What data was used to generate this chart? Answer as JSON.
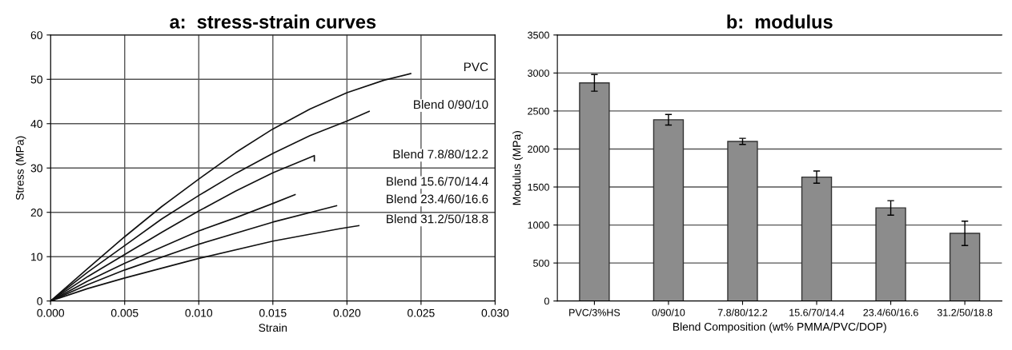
{
  "chart_data": [
    {
      "type": "line",
      "title": "a:  stress-strain curves",
      "xlabel": "Strain",
      "ylabel": "Stress (MPa)",
      "xlim": [
        0,
        0.03
      ],
      "ylim": [
        0,
        60
      ],
      "xticks": [
        {
          "value": 0,
          "label": "0.000"
        },
        {
          "value": 0.005,
          "label": "0.005"
        },
        {
          "value": 0.01,
          "label": "0.010"
        },
        {
          "value": 0.015,
          "label": "0.015"
        },
        {
          "value": 0.02,
          "label": "0.020"
        },
        {
          "value": 0.025,
          "label": "0.025"
        },
        {
          "value": 0.03,
          "label": "0.030"
        }
      ],
      "yticks": [
        0,
        10,
        20,
        30,
        40,
        50,
        60
      ],
      "grid": true,
      "legend": false,
      "marker": "none",
      "line_style": "solid",
      "series": [
        {
          "name": "PVC",
          "color": "#111111",
          "x": [
            0,
            0.0025,
            0.005,
            0.0075,
            0.01,
            0.0125,
            0.015,
            0.0175,
            0.02,
            0.0225,
            0.0243
          ],
          "values": [
            0,
            7.3,
            14.5,
            21.3,
            27.5,
            33.5,
            38.8,
            43.3,
            47,
            49.8,
            51.3
          ]
        },
        {
          "name": "Blend 0/90/10",
          "color": "#111111",
          "x": [
            0,
            0.0025,
            0.005,
            0.0075,
            0.01,
            0.0125,
            0.015,
            0.0175,
            0.02,
            0.0215
          ],
          "values": [
            0,
            6.5,
            12.5,
            18.5,
            23.8,
            28.8,
            33.3,
            37.3,
            40.6,
            42.8
          ]
        },
        {
          "name": "Blend 7.8/80/12.2",
          "color": "#111111",
          "x": [
            0,
            0.0025,
            0.005,
            0.0075,
            0.01,
            0.0125,
            0.015,
            0.0178,
            0.0178
          ],
          "values": [
            0,
            5.5,
            10.5,
            15.5,
            20.3,
            24.8,
            28.9,
            32.8,
            31.6
          ]
        },
        {
          "name": "Blend 15.6/70/14.4",
          "color": "#111111",
          "x": [
            0,
            0.0025,
            0.005,
            0.01,
            0.0125,
            0.015,
            0.0165
          ],
          "values": [
            0,
            4.5,
            8.5,
            15.8,
            18.8,
            22,
            24
          ]
        },
        {
          "name": "Blend 23.4/60/16.6",
          "color": "#111111",
          "x": [
            0,
            0.0025,
            0.005,
            0.01,
            0.015,
            0.0193
          ],
          "values": [
            0,
            3.7,
            7,
            12.8,
            17.8,
            21.5
          ]
        },
        {
          "name": "Blend 31.2/50/18.8",
          "color": "#111111",
          "x": [
            0,
            0.0025,
            0.005,
            0.01,
            0.015,
            0.0195,
            0.0208
          ],
          "values": [
            0,
            2.8,
            5.2,
            9.6,
            13.5,
            16.3,
            17
          ]
        }
      ]
    },
    {
      "type": "bar",
      "title": "b:  modulus",
      "xlabel": "Blend Composition (wt% PMMA/PVC/DOP)",
      "ylabel": "Modulus (MPa)",
      "ylim": [
        0,
        3500
      ],
      "yticks": [
        0,
        500,
        1000,
        1500,
        2000,
        2500,
        3000,
        3500
      ],
      "grid": "y",
      "legend": false,
      "categories": [
        "PVC/3%HS",
        "0/90/10",
        "7.8/80/12.2",
        "15.6/70/14.4",
        "23.4/60/16.6",
        "31.2/50/18.8"
      ],
      "values": [
        2870,
        2385,
        2100,
        1630,
        1225,
        890
      ],
      "errors": [
        110,
        70,
        40,
        80,
        95,
        160
      ],
      "color": "#8c8c8c"
    }
  ]
}
